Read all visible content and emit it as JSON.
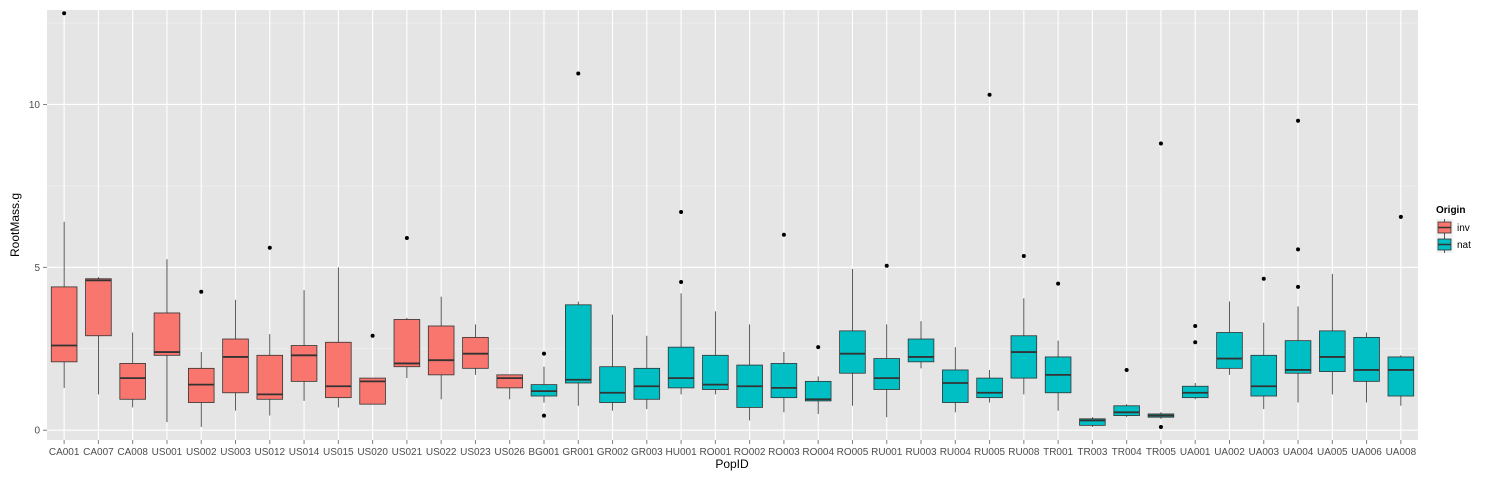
{
  "chart_data": {
    "type": "boxplot",
    "xlabel": "PopID",
    "ylabel": "RootMass.g",
    "ylim": [
      -0.3,
      12.9
    ],
    "yticks": [
      0,
      5,
      10
    ],
    "legend": {
      "title": "Origin",
      "position": "right",
      "entries": [
        {
          "label": "inv",
          "color": "#F8766D"
        },
        {
          "label": "nat",
          "color": "#00BFC4"
        }
      ]
    },
    "grid": true,
    "categories": [
      "CA001",
      "CA007",
      "CA008",
      "US001",
      "US002",
      "US003",
      "US012",
      "US014",
      "US015",
      "US020",
      "US021",
      "US022",
      "US023",
      "US026",
      "BG001",
      "GR001",
      "GR002",
      "GR003",
      "HU001",
      "RO001",
      "RO002",
      "RO003",
      "RO004",
      "RO005",
      "RU001",
      "RU003",
      "RU004",
      "RU005",
      "RU008",
      "TR001",
      "TR003",
      "TR004",
      "TR005",
      "UA001",
      "UA002",
      "UA003",
      "UA004",
      "UA005",
      "UA006",
      "UA008"
    ],
    "boxes": [
      {
        "id": "CA001",
        "origin": "inv",
        "min": 1.3,
        "q1": 2.1,
        "median": 2.6,
        "q3": 4.4,
        "max": 6.4,
        "outliers": [
          12.8
        ]
      },
      {
        "id": "CA007",
        "origin": "inv",
        "min": 1.1,
        "q1": 2.9,
        "median": 4.6,
        "q3": 4.65,
        "max": 4.7,
        "outliers": []
      },
      {
        "id": "CA008",
        "origin": "inv",
        "min": 0.7,
        "q1": 0.95,
        "median": 1.6,
        "q3": 2.05,
        "max": 3.0,
        "outliers": []
      },
      {
        "id": "US001",
        "origin": "inv",
        "min": 0.25,
        "q1": 2.3,
        "median": 2.4,
        "q3": 3.6,
        "max": 5.25,
        "outliers": []
      },
      {
        "id": "US002",
        "origin": "inv",
        "min": 0.1,
        "q1": 0.85,
        "median": 1.4,
        "q3": 1.9,
        "max": 2.4,
        "outliers": [
          4.25
        ]
      },
      {
        "id": "US003",
        "origin": "inv",
        "min": 0.6,
        "q1": 1.15,
        "median": 2.25,
        "q3": 2.8,
        "max": 4.0,
        "outliers": []
      },
      {
        "id": "US012",
        "origin": "inv",
        "min": 0.45,
        "q1": 0.95,
        "median": 1.1,
        "q3": 2.3,
        "max": 2.95,
        "outliers": [
          5.6
        ]
      },
      {
        "id": "US014",
        "origin": "inv",
        "min": 0.9,
        "q1": 1.5,
        "median": 2.3,
        "q3": 2.6,
        "max": 4.3,
        "outliers": []
      },
      {
        "id": "US015",
        "origin": "inv",
        "min": 0.7,
        "q1": 1.0,
        "median": 1.35,
        "q3": 2.7,
        "max": 5.0,
        "outliers": []
      },
      {
        "id": "US020",
        "origin": "inv",
        "min": 0.8,
        "q1": 0.8,
        "median": 1.5,
        "q3": 1.6,
        "max": 1.6,
        "outliers": [
          2.9
        ]
      },
      {
        "id": "US021",
        "origin": "inv",
        "min": 1.6,
        "q1": 1.95,
        "median": 2.05,
        "q3": 3.4,
        "max": 3.45,
        "outliers": [
          5.9
        ]
      },
      {
        "id": "US022",
        "origin": "inv",
        "min": 0.95,
        "q1": 1.7,
        "median": 2.15,
        "q3": 3.2,
        "max": 4.1,
        "outliers": []
      },
      {
        "id": "US023",
        "origin": "inv",
        "min": 1.7,
        "q1": 1.9,
        "median": 2.35,
        "q3": 2.85,
        "max": 3.25,
        "outliers": []
      },
      {
        "id": "US026",
        "origin": "inv",
        "min": 0.95,
        "q1": 1.3,
        "median": 1.6,
        "q3": 1.7,
        "max": 1.7,
        "outliers": []
      },
      {
        "id": "BG001",
        "origin": "nat",
        "min": 0.85,
        "q1": 1.05,
        "median": 1.2,
        "q3": 1.4,
        "max": 1.95,
        "outliers": [
          2.35,
          0.45
        ]
      },
      {
        "id": "GR001",
        "origin": "nat",
        "min": 0.75,
        "q1": 1.45,
        "median": 1.55,
        "q3": 3.85,
        "max": 3.95,
        "outliers": [
          10.95
        ]
      },
      {
        "id": "GR002",
        "origin": "nat",
        "min": 0.6,
        "q1": 0.85,
        "median": 1.15,
        "q3": 1.95,
        "max": 3.55,
        "outliers": []
      },
      {
        "id": "GR003",
        "origin": "nat",
        "min": 0.65,
        "q1": 0.95,
        "median": 1.35,
        "q3": 1.9,
        "max": 2.9,
        "outliers": []
      },
      {
        "id": "HU001",
        "origin": "nat",
        "min": 1.1,
        "q1": 1.3,
        "median": 1.6,
        "q3": 2.55,
        "max": 4.2,
        "outliers": [
          6.7,
          4.55
        ]
      },
      {
        "id": "RO001",
        "origin": "nat",
        "min": 1.1,
        "q1": 1.25,
        "median": 1.4,
        "q3": 2.3,
        "max": 3.65,
        "outliers": []
      },
      {
        "id": "RO002",
        "origin": "nat",
        "min": 0.3,
        "q1": 0.7,
        "median": 1.35,
        "q3": 2.0,
        "max": 3.25,
        "outliers": []
      },
      {
        "id": "RO003",
        "origin": "nat",
        "min": 0.55,
        "q1": 1.0,
        "median": 1.3,
        "q3": 2.05,
        "max": 2.4,
        "outliers": [
          6.0
        ]
      },
      {
        "id": "RO004",
        "origin": "nat",
        "min": 0.5,
        "q1": 0.9,
        "median": 0.95,
        "q3": 1.5,
        "max": 1.65,
        "outliers": [
          2.55
        ]
      },
      {
        "id": "RO005",
        "origin": "nat",
        "min": 0.75,
        "q1": 1.75,
        "median": 2.35,
        "q3": 3.05,
        "max": 4.95,
        "outliers": []
      },
      {
        "id": "RU001",
        "origin": "nat",
        "min": 0.4,
        "q1": 1.25,
        "median": 1.6,
        "q3": 2.2,
        "max": 3.25,
        "outliers": [
          5.05
        ]
      },
      {
        "id": "RU003",
        "origin": "nat",
        "min": 1.9,
        "q1": 2.1,
        "median": 2.25,
        "q3": 2.8,
        "max": 3.35,
        "outliers": []
      },
      {
        "id": "RU004",
        "origin": "nat",
        "min": 0.55,
        "q1": 0.85,
        "median": 1.45,
        "q3": 1.85,
        "max": 2.55,
        "outliers": []
      },
      {
        "id": "RU005",
        "origin": "nat",
        "min": 0.85,
        "q1": 1.0,
        "median": 1.15,
        "q3": 1.6,
        "max": 1.85,
        "outliers": [
          10.3
        ]
      },
      {
        "id": "RU008",
        "origin": "nat",
        "min": 1.1,
        "q1": 1.6,
        "median": 2.4,
        "q3": 2.9,
        "max": 4.05,
        "outliers": [
          5.35
        ]
      },
      {
        "id": "TR001",
        "origin": "nat",
        "min": 0.6,
        "q1": 1.15,
        "median": 1.7,
        "q3": 2.25,
        "max": 2.75,
        "outliers": [
          4.5
        ]
      },
      {
        "id": "TR003",
        "origin": "nat",
        "min": 0.1,
        "q1": 0.15,
        "median": 0.3,
        "q3": 0.35,
        "max": 0.4,
        "outliers": []
      },
      {
        "id": "TR004",
        "origin": "nat",
        "min": 0.4,
        "q1": 0.45,
        "median": 0.55,
        "q3": 0.75,
        "max": 0.8,
        "outliers": [
          1.85
        ]
      },
      {
        "id": "TR005",
        "origin": "nat",
        "min": 0.35,
        "q1": 0.4,
        "median": 0.45,
        "q3": 0.5,
        "max": 0.55,
        "outliers": [
          8.8,
          0.1
        ]
      },
      {
        "id": "UA001",
        "origin": "nat",
        "min": 0.95,
        "q1": 1.0,
        "median": 1.15,
        "q3": 1.35,
        "max": 1.45,
        "outliers": [
          3.2,
          2.7
        ]
      },
      {
        "id": "UA002",
        "origin": "nat",
        "min": 1.7,
        "q1": 1.9,
        "median": 2.2,
        "q3": 3.0,
        "max": 3.95,
        "outliers": []
      },
      {
        "id": "UA003",
        "origin": "nat",
        "min": 0.65,
        "q1": 1.05,
        "median": 1.35,
        "q3": 2.3,
        "max": 3.3,
        "outliers": [
          4.65
        ]
      },
      {
        "id": "UA004",
        "origin": "nat",
        "min": 0.85,
        "q1": 1.75,
        "median": 1.85,
        "q3": 2.75,
        "max": 3.8,
        "outliers": [
          9.5,
          5.55,
          4.4
        ]
      },
      {
        "id": "UA005",
        "origin": "nat",
        "min": 1.1,
        "q1": 1.8,
        "median": 2.25,
        "q3": 3.05,
        "max": 4.8,
        "outliers": []
      },
      {
        "id": "UA006",
        "origin": "nat",
        "min": 0.85,
        "q1": 1.5,
        "median": 1.85,
        "q3": 2.85,
        "max": 3.0,
        "outliers": []
      },
      {
        "id": "UA008",
        "origin": "nat",
        "min": 0.75,
        "q1": 1.05,
        "median": 1.85,
        "q3": 2.25,
        "max": 2.3,
        "outliers": [
          6.55
        ]
      }
    ]
  }
}
